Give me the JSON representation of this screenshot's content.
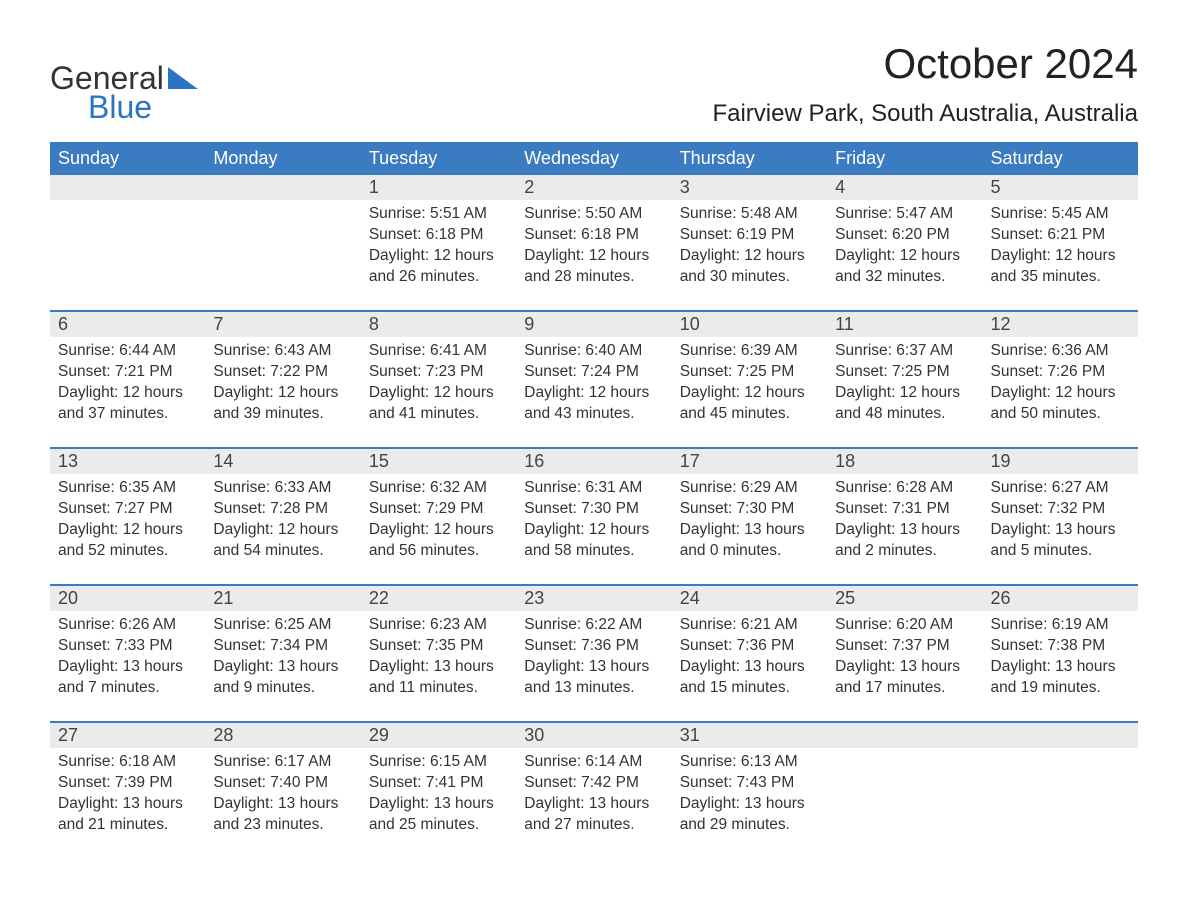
{
  "logo": {
    "text_top": "General",
    "text_bottom": "Blue",
    "brand_color": "#2a74c3",
    "text_color": "#333333"
  },
  "header": {
    "title": "October 2024",
    "location": "Fairview Park, South Australia, Australia",
    "title_fontsize": 42,
    "location_fontsize": 24
  },
  "calendar": {
    "header_bg": "#3a7bc2",
    "header_text_color": "#ffffff",
    "daynum_bg": "#ebebeb",
    "week_separator_color": "#3a7bc2",
    "body_text_color": "#333333",
    "weekday_fontsize": 18,
    "daynum_fontsize": 18,
    "data_fontsize": 15.5,
    "weekdays": [
      "Sunday",
      "Monday",
      "Tuesday",
      "Wednesday",
      "Thursday",
      "Friday",
      "Saturday"
    ],
    "weeks": [
      {
        "days": [
          {
            "num": "",
            "sunrise": "",
            "sunset": "",
            "daylight": ""
          },
          {
            "num": "",
            "sunrise": "",
            "sunset": "",
            "daylight": ""
          },
          {
            "num": "1",
            "sunrise": "Sunrise: 5:51 AM",
            "sunset": "Sunset: 6:18 PM",
            "daylight": "Daylight: 12 hours and 26 minutes."
          },
          {
            "num": "2",
            "sunrise": "Sunrise: 5:50 AM",
            "sunset": "Sunset: 6:18 PM",
            "daylight": "Daylight: 12 hours and 28 minutes."
          },
          {
            "num": "3",
            "sunrise": "Sunrise: 5:48 AM",
            "sunset": "Sunset: 6:19 PM",
            "daylight": "Daylight: 12 hours and 30 minutes."
          },
          {
            "num": "4",
            "sunrise": "Sunrise: 5:47 AM",
            "sunset": "Sunset: 6:20 PM",
            "daylight": "Daylight: 12 hours and 32 minutes."
          },
          {
            "num": "5",
            "sunrise": "Sunrise: 5:45 AM",
            "sunset": "Sunset: 6:21 PM",
            "daylight": "Daylight: 12 hours and 35 minutes."
          }
        ]
      },
      {
        "days": [
          {
            "num": "6",
            "sunrise": "Sunrise: 6:44 AM",
            "sunset": "Sunset: 7:21 PM",
            "daylight": "Daylight: 12 hours and 37 minutes."
          },
          {
            "num": "7",
            "sunrise": "Sunrise: 6:43 AM",
            "sunset": "Sunset: 7:22 PM",
            "daylight": "Daylight: 12 hours and 39 minutes."
          },
          {
            "num": "8",
            "sunrise": "Sunrise: 6:41 AM",
            "sunset": "Sunset: 7:23 PM",
            "daylight": "Daylight: 12 hours and 41 minutes."
          },
          {
            "num": "9",
            "sunrise": "Sunrise: 6:40 AM",
            "sunset": "Sunset: 7:24 PM",
            "daylight": "Daylight: 12 hours and 43 minutes."
          },
          {
            "num": "10",
            "sunrise": "Sunrise: 6:39 AM",
            "sunset": "Sunset: 7:25 PM",
            "daylight": "Daylight: 12 hours and 45 minutes."
          },
          {
            "num": "11",
            "sunrise": "Sunrise: 6:37 AM",
            "sunset": "Sunset: 7:25 PM",
            "daylight": "Daylight: 12 hours and 48 minutes."
          },
          {
            "num": "12",
            "sunrise": "Sunrise: 6:36 AM",
            "sunset": "Sunset: 7:26 PM",
            "daylight": "Daylight: 12 hours and 50 minutes."
          }
        ]
      },
      {
        "days": [
          {
            "num": "13",
            "sunrise": "Sunrise: 6:35 AM",
            "sunset": "Sunset: 7:27 PM",
            "daylight": "Daylight: 12 hours and 52 minutes."
          },
          {
            "num": "14",
            "sunrise": "Sunrise: 6:33 AM",
            "sunset": "Sunset: 7:28 PM",
            "daylight": "Daylight: 12 hours and 54 minutes."
          },
          {
            "num": "15",
            "sunrise": "Sunrise: 6:32 AM",
            "sunset": "Sunset: 7:29 PM",
            "daylight": "Daylight: 12 hours and 56 minutes."
          },
          {
            "num": "16",
            "sunrise": "Sunrise: 6:31 AM",
            "sunset": "Sunset: 7:30 PM",
            "daylight": "Daylight: 12 hours and 58 minutes."
          },
          {
            "num": "17",
            "sunrise": "Sunrise: 6:29 AM",
            "sunset": "Sunset: 7:30 PM",
            "daylight": "Daylight: 13 hours and 0 minutes."
          },
          {
            "num": "18",
            "sunrise": "Sunrise: 6:28 AM",
            "sunset": "Sunset: 7:31 PM",
            "daylight": "Daylight: 13 hours and 2 minutes."
          },
          {
            "num": "19",
            "sunrise": "Sunrise: 6:27 AM",
            "sunset": "Sunset: 7:32 PM",
            "daylight": "Daylight: 13 hours and 5 minutes."
          }
        ]
      },
      {
        "days": [
          {
            "num": "20",
            "sunrise": "Sunrise: 6:26 AM",
            "sunset": "Sunset: 7:33 PM",
            "daylight": "Daylight: 13 hours and 7 minutes."
          },
          {
            "num": "21",
            "sunrise": "Sunrise: 6:25 AM",
            "sunset": "Sunset: 7:34 PM",
            "daylight": "Daylight: 13 hours and 9 minutes."
          },
          {
            "num": "22",
            "sunrise": "Sunrise: 6:23 AM",
            "sunset": "Sunset: 7:35 PM",
            "daylight": "Daylight: 13 hours and 11 minutes."
          },
          {
            "num": "23",
            "sunrise": "Sunrise: 6:22 AM",
            "sunset": "Sunset: 7:36 PM",
            "daylight": "Daylight: 13 hours and 13 minutes."
          },
          {
            "num": "24",
            "sunrise": "Sunrise: 6:21 AM",
            "sunset": "Sunset: 7:36 PM",
            "daylight": "Daylight: 13 hours and 15 minutes."
          },
          {
            "num": "25",
            "sunrise": "Sunrise: 6:20 AM",
            "sunset": "Sunset: 7:37 PM",
            "daylight": "Daylight: 13 hours and 17 minutes."
          },
          {
            "num": "26",
            "sunrise": "Sunrise: 6:19 AM",
            "sunset": "Sunset: 7:38 PM",
            "daylight": "Daylight: 13 hours and 19 minutes."
          }
        ]
      },
      {
        "days": [
          {
            "num": "27",
            "sunrise": "Sunrise: 6:18 AM",
            "sunset": "Sunset: 7:39 PM",
            "daylight": "Daylight: 13 hours and 21 minutes."
          },
          {
            "num": "28",
            "sunrise": "Sunrise: 6:17 AM",
            "sunset": "Sunset: 7:40 PM",
            "daylight": "Daylight: 13 hours and 23 minutes."
          },
          {
            "num": "29",
            "sunrise": "Sunrise: 6:15 AM",
            "sunset": "Sunset: 7:41 PM",
            "daylight": "Daylight: 13 hours and 25 minutes."
          },
          {
            "num": "30",
            "sunrise": "Sunrise: 6:14 AM",
            "sunset": "Sunset: 7:42 PM",
            "daylight": "Daylight: 13 hours and 27 minutes."
          },
          {
            "num": "31",
            "sunrise": "Sunrise: 6:13 AM",
            "sunset": "Sunset: 7:43 PM",
            "daylight": "Daylight: 13 hours and 29 minutes."
          },
          {
            "num": "",
            "sunrise": "",
            "sunset": "",
            "daylight": ""
          },
          {
            "num": "",
            "sunrise": "",
            "sunset": "",
            "daylight": ""
          }
        ]
      }
    ]
  }
}
